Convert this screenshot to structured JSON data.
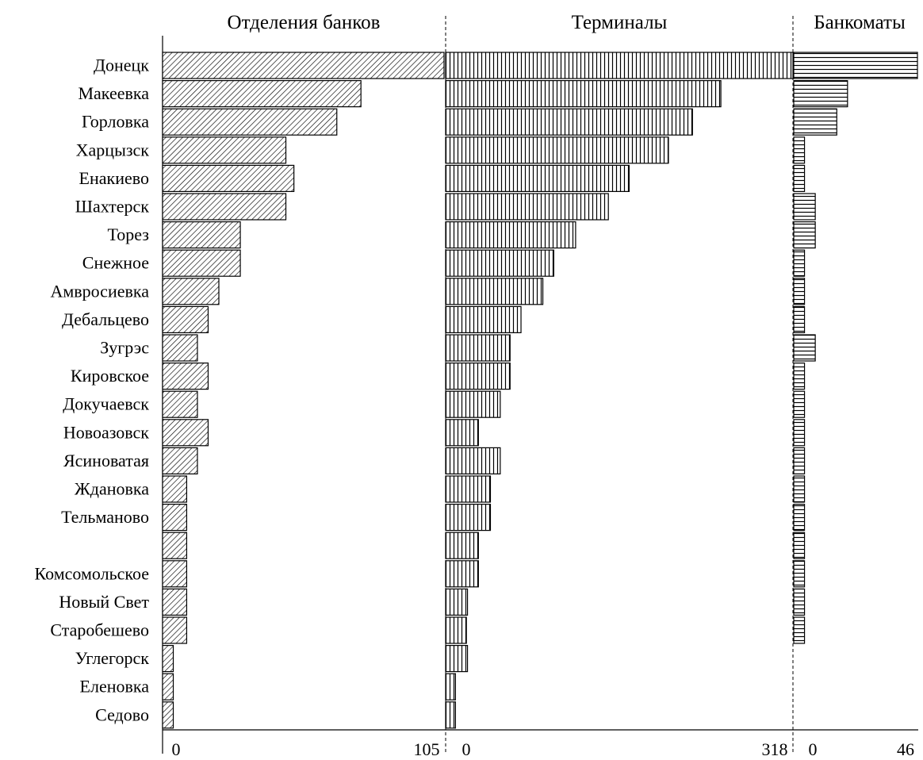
{
  "chart_data": [
    {
      "type": "bar",
      "orientation": "horizontal",
      "title": "Отделения банков",
      "xlim": [
        0,
        105
      ],
      "xticks": [
        "0",
        "105"
      ],
      "categories": [
        "Донецк",
        "Макеевка",
        "Горловка",
        "Харцызск",
        "Енакиево",
        "Шахтерск",
        "Торез",
        "Снежное",
        "Амвросиевка",
        "Дебальцево",
        "Зугрэс",
        "Кировское",
        "Докучаевск",
        "Новоазовск",
        "Ясиноватая",
        "Ждановка",
        "Тельманово",
        "",
        "Комсомольское",
        "Новый Свет",
        "Старобешево",
        "Углегорск",
        "Еленовка",
        "Седово"
      ],
      "values": [
        105,
        74,
        65,
        46,
        49,
        46,
        29,
        29,
        21,
        17,
        13,
        17,
        13,
        17,
        13,
        9,
        9,
        9,
        9,
        9,
        9,
        4,
        4,
        4
      ]
    },
    {
      "type": "bar",
      "orientation": "horizontal",
      "title": "Терминалы",
      "xlim": [
        0,
        318
      ],
      "xticks": [
        "0",
        "318"
      ],
      "values": [
        318,
        252,
        226,
        204,
        168,
        149,
        119,
        99,
        89,
        69,
        59,
        59,
        50,
        30,
        50,
        41,
        41,
        30,
        30,
        20,
        19,
        20,
        9,
        9
      ]
    },
    {
      "type": "bar",
      "orientation": "horizontal",
      "title": "Банкоматы",
      "xlim": [
        0,
        46
      ],
      "xticks": [
        "0",
        "46"
      ],
      "values": [
        46,
        20,
        16,
        4,
        4,
        8,
        8,
        4,
        4,
        4,
        8,
        4,
        4,
        4,
        4,
        4,
        4,
        4,
        4,
        4,
        4,
        0,
        0,
        0
      ]
    }
  ]
}
